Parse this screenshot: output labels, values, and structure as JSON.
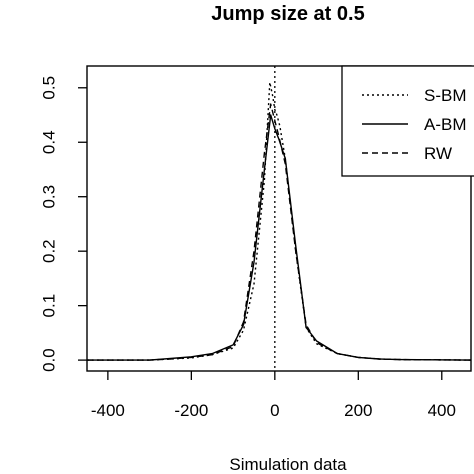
{
  "chart_data": {
    "type": "line",
    "title": "Jump size at 0.5",
    "xlabel": "Simulation data",
    "ylabel": "",
    "xlim": [
      -450,
      470
    ],
    "ylim": [
      -0.02,
      0.54
    ],
    "x_ticks": [
      -400,
      -200,
      0,
      200,
      400
    ],
    "y_ticks": [
      0.0,
      0.1,
      0.2,
      0.3,
      0.4,
      0.5
    ],
    "x_tick_labels": [
      "-400",
      "-200",
      "0",
      "200",
      "400"
    ],
    "y_tick_labels": [
      "0.0",
      "0.1",
      "0.2",
      "0.3",
      "0.4",
      "0.5"
    ],
    "grid": false,
    "legend_position": "top-right",
    "reference_line": {
      "x": 0,
      "style": "dotted"
    },
    "series": [
      {
        "name": "S-BM",
        "style": "dotted",
        "x": [
          -450,
          -300,
          -250,
          -200,
          -150,
          -100,
          -75,
          -50,
          -25,
          -12,
          -5,
          0,
          5,
          12,
          25,
          50,
          75,
          100,
          150,
          200,
          250,
          300,
          470
        ],
        "y": [
          0.0,
          0.0,
          0.002,
          0.004,
          0.01,
          0.022,
          0.055,
          0.14,
          0.33,
          0.51,
          0.485,
          0.46,
          0.45,
          0.43,
          0.37,
          0.2,
          0.06,
          0.03,
          0.012,
          0.005,
          0.002,
          0.001,
          0.0
        ]
      },
      {
        "name": "A-BM",
        "style": "solid",
        "x": [
          -450,
          -300,
          -250,
          -200,
          -150,
          -100,
          -75,
          -50,
          -25,
          -10,
          0,
          10,
          25,
          50,
          75,
          100,
          150,
          200,
          250,
          300,
          470
        ],
        "y": [
          0.0,
          0.0,
          0.003,
          0.006,
          0.012,
          0.028,
          0.065,
          0.18,
          0.35,
          0.45,
          0.425,
          0.405,
          0.37,
          0.21,
          0.06,
          0.035,
          0.012,
          0.005,
          0.002,
          0.001,
          0.0
        ]
      },
      {
        "name": "RW",
        "style": "dashed",
        "x": [
          -450,
          -300,
          -250,
          -200,
          -150,
          -100,
          -75,
          -50,
          -25,
          -10,
          0,
          10,
          25,
          50,
          75,
          100,
          150,
          200,
          250,
          300,
          470
        ],
        "y": [
          0.0,
          0.0,
          0.002,
          0.005,
          0.01,
          0.025,
          0.07,
          0.2,
          0.38,
          0.47,
          0.44,
          0.41,
          0.36,
          0.2,
          0.065,
          0.032,
          0.012,
          0.005,
          0.002,
          0.001,
          0.0
        ]
      }
    ]
  }
}
